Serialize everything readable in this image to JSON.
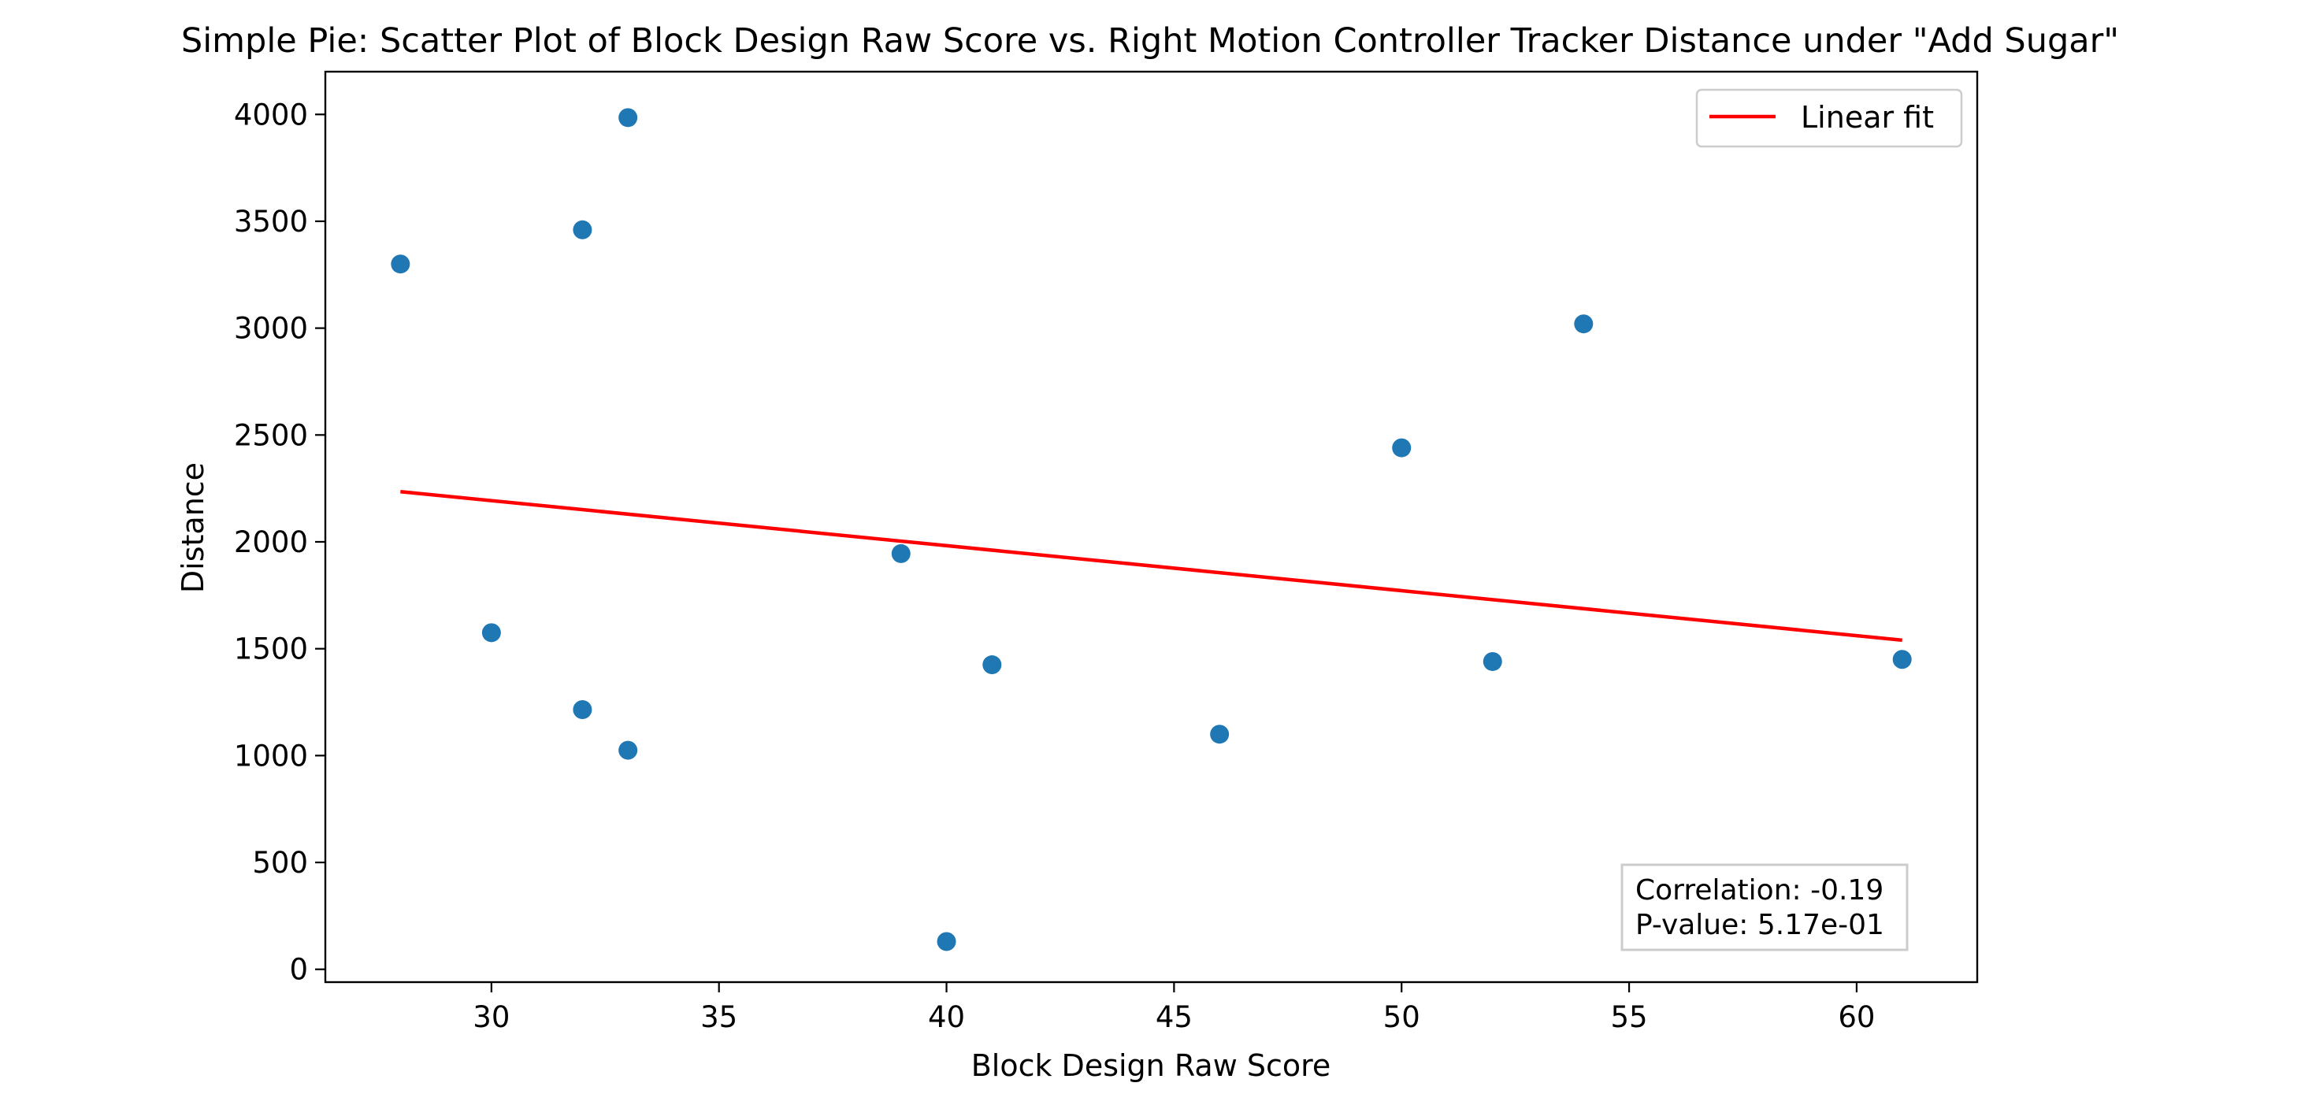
{
  "chart_data": {
    "type": "scatter",
    "title": "Simple Pie: Scatter Plot of Block Design Raw Score vs. Right Motion Controller Tracker Distance under \"Add Sugar\"",
    "xlabel": "Block Design Raw Score",
    "ylabel": "Distance",
    "xlim": [
      26.35,
      62.65
    ],
    "ylim": [
      -60,
      4200
    ],
    "xticks": [
      30,
      35,
      40,
      45,
      50,
      55,
      60
    ],
    "yticks": [
      0,
      500,
      1000,
      1500,
      2000,
      2500,
      3000,
      3500,
      4000
    ],
    "grid": false,
    "legend_position": "upper right",
    "points": [
      {
        "x": 28,
        "y": 3300
      },
      {
        "x": 32,
        "y": 3460
      },
      {
        "x": 33,
        "y": 3985
      },
      {
        "x": 30,
        "y": 1575
      },
      {
        "x": 32,
        "y": 1215
      },
      {
        "x": 33,
        "y": 1025
      },
      {
        "x": 39,
        "y": 1945
      },
      {
        "x": 40,
        "y": 130
      },
      {
        "x": 41,
        "y": 1425
      },
      {
        "x": 46,
        "y": 1100
      },
      {
        "x": 50,
        "y": 2440
      },
      {
        "x": 52,
        "y": 1440
      },
      {
        "x": 54,
        "y": 3020
      },
      {
        "x": 61,
        "y": 1450
      }
    ],
    "fit_line": {
      "name": "Linear fit",
      "x": [
        28,
        61
      ],
      "y": [
        2235,
        1540
      ]
    },
    "stats": {
      "correlation": "Correlation: -0.19",
      "p_value": "P-value: 5.17e-01"
    },
    "colors": {
      "points": "#1f77b4",
      "fit_line": "#ff0000",
      "axes": "#000000",
      "legend_border": "#cccccc",
      "stats_border": "#cccccc"
    }
  }
}
